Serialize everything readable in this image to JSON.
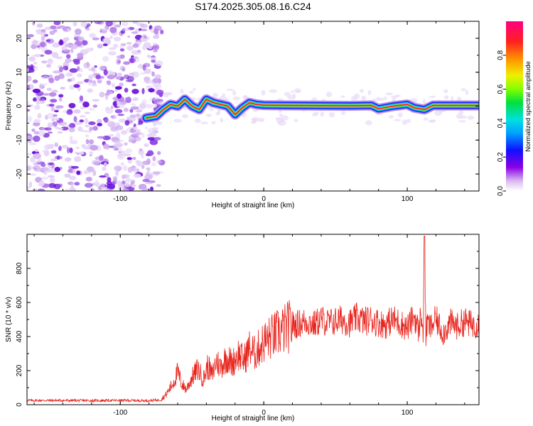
{
  "title": "S174.2025.305.08.16.C24",
  "chart_data": [
    {
      "type": "heatmap",
      "xlabel": "Height of straight line (km)",
      "ylabel": "Frequency (Hz)",
      "xlim": [
        -165,
        150
      ],
      "ylim": [
        -25,
        25
      ],
      "x_ticks": [
        -100,
        0,
        100
      ],
      "y_ticks": [
        -20,
        -10,
        0,
        10,
        20
      ],
      "noise_region_x": [
        -165,
        -75
      ],
      "ridge": [
        {
          "x": -82,
          "y": -3.5
        },
        {
          "x": -75,
          "y": -3
        },
        {
          "x": -70,
          "y": -1
        },
        {
          "x": -65,
          "y": 0.5
        },
        {
          "x": -60,
          "y": 0
        },
        {
          "x": -55,
          "y": 2
        },
        {
          "x": -50,
          "y": 0
        },
        {
          "x": -45,
          "y": -1
        },
        {
          "x": -40,
          "y": 2
        },
        {
          "x": -35,
          "y": 1
        },
        {
          "x": -30,
          "y": 0.5
        },
        {
          "x": -25,
          "y": 0
        },
        {
          "x": -20,
          "y": -2.5
        },
        {
          "x": -15,
          "y": -0.5
        },
        {
          "x": -10,
          "y": 1
        },
        {
          "x": -5,
          "y": 0.5
        },
        {
          "x": 0,
          "y": 0.3
        },
        {
          "x": 20,
          "y": 0.2
        },
        {
          "x": 60,
          "y": 0.1
        },
        {
          "x": 75,
          "y": 0.2
        },
        {
          "x": 80,
          "y": -0.8
        },
        {
          "x": 90,
          "y": 0
        },
        {
          "x": 100,
          "y": 0.5
        },
        {
          "x": 105,
          "y": -0.5
        },
        {
          "x": 112,
          "y": -1
        },
        {
          "x": 118,
          "y": 0.2
        },
        {
          "x": 150,
          "y": 0.2
        }
      ],
      "colorbar": {
        "label": "Normalized spectral amplitude",
        "range": [
          0,
          1
        ],
        "ticks": [
          "0.0",
          "0.2",
          "0.4",
          "0.6",
          "0.8"
        ]
      }
    },
    {
      "type": "line",
      "xlabel": "Height of straight line (km)",
      "ylabel": "SNR (10 * v/v)",
      "xlim": [
        -165,
        150
      ],
      "ylim": [
        0,
        1000
      ],
      "x_ticks": [
        -100,
        0,
        100
      ],
      "y_ticks": [
        0,
        200,
        400,
        600,
        800
      ],
      "series": [
        {
          "name": "SNR",
          "color": "#e8231c",
          "x": [
            -165,
            -140,
            -120,
            -100,
            -80,
            -72,
            -68,
            -63,
            -60,
            -57,
            -54,
            -50,
            -46,
            -42,
            -39,
            -36,
            -33,
            -30,
            -26,
            -22,
            -18,
            -14,
            -10,
            -6,
            -2,
            2,
            6,
            10,
            14,
            18,
            22,
            26,
            30,
            35,
            40,
            45,
            50,
            55,
            60,
            65,
            70,
            75,
            80,
            85,
            90,
            95,
            100,
            105,
            108,
            110,
            111,
            112,
            113,
            114,
            116,
            120,
            125,
            130,
            135,
            140,
            145,
            150
          ],
          "y": [
            25,
            25,
            24,
            25,
            24,
            28,
            60,
            130,
            190,
            120,
            90,
            160,
            210,
            150,
            230,
            170,
            260,
            220,
            280,
            240,
            300,
            260,
            330,
            300,
            350,
            380,
            400,
            420,
            440,
            460,
            470,
            480,
            490,
            470,
            500,
            480,
            490,
            500,
            480,
            510,
            490,
            500,
            480,
            470,
            500,
            480,
            450,
            520,
            430,
            560,
            380,
            990,
            400,
            480,
            450,
            500,
            420,
            480,
            460,
            490,
            470,
            480
          ]
        }
      ]
    }
  ]
}
